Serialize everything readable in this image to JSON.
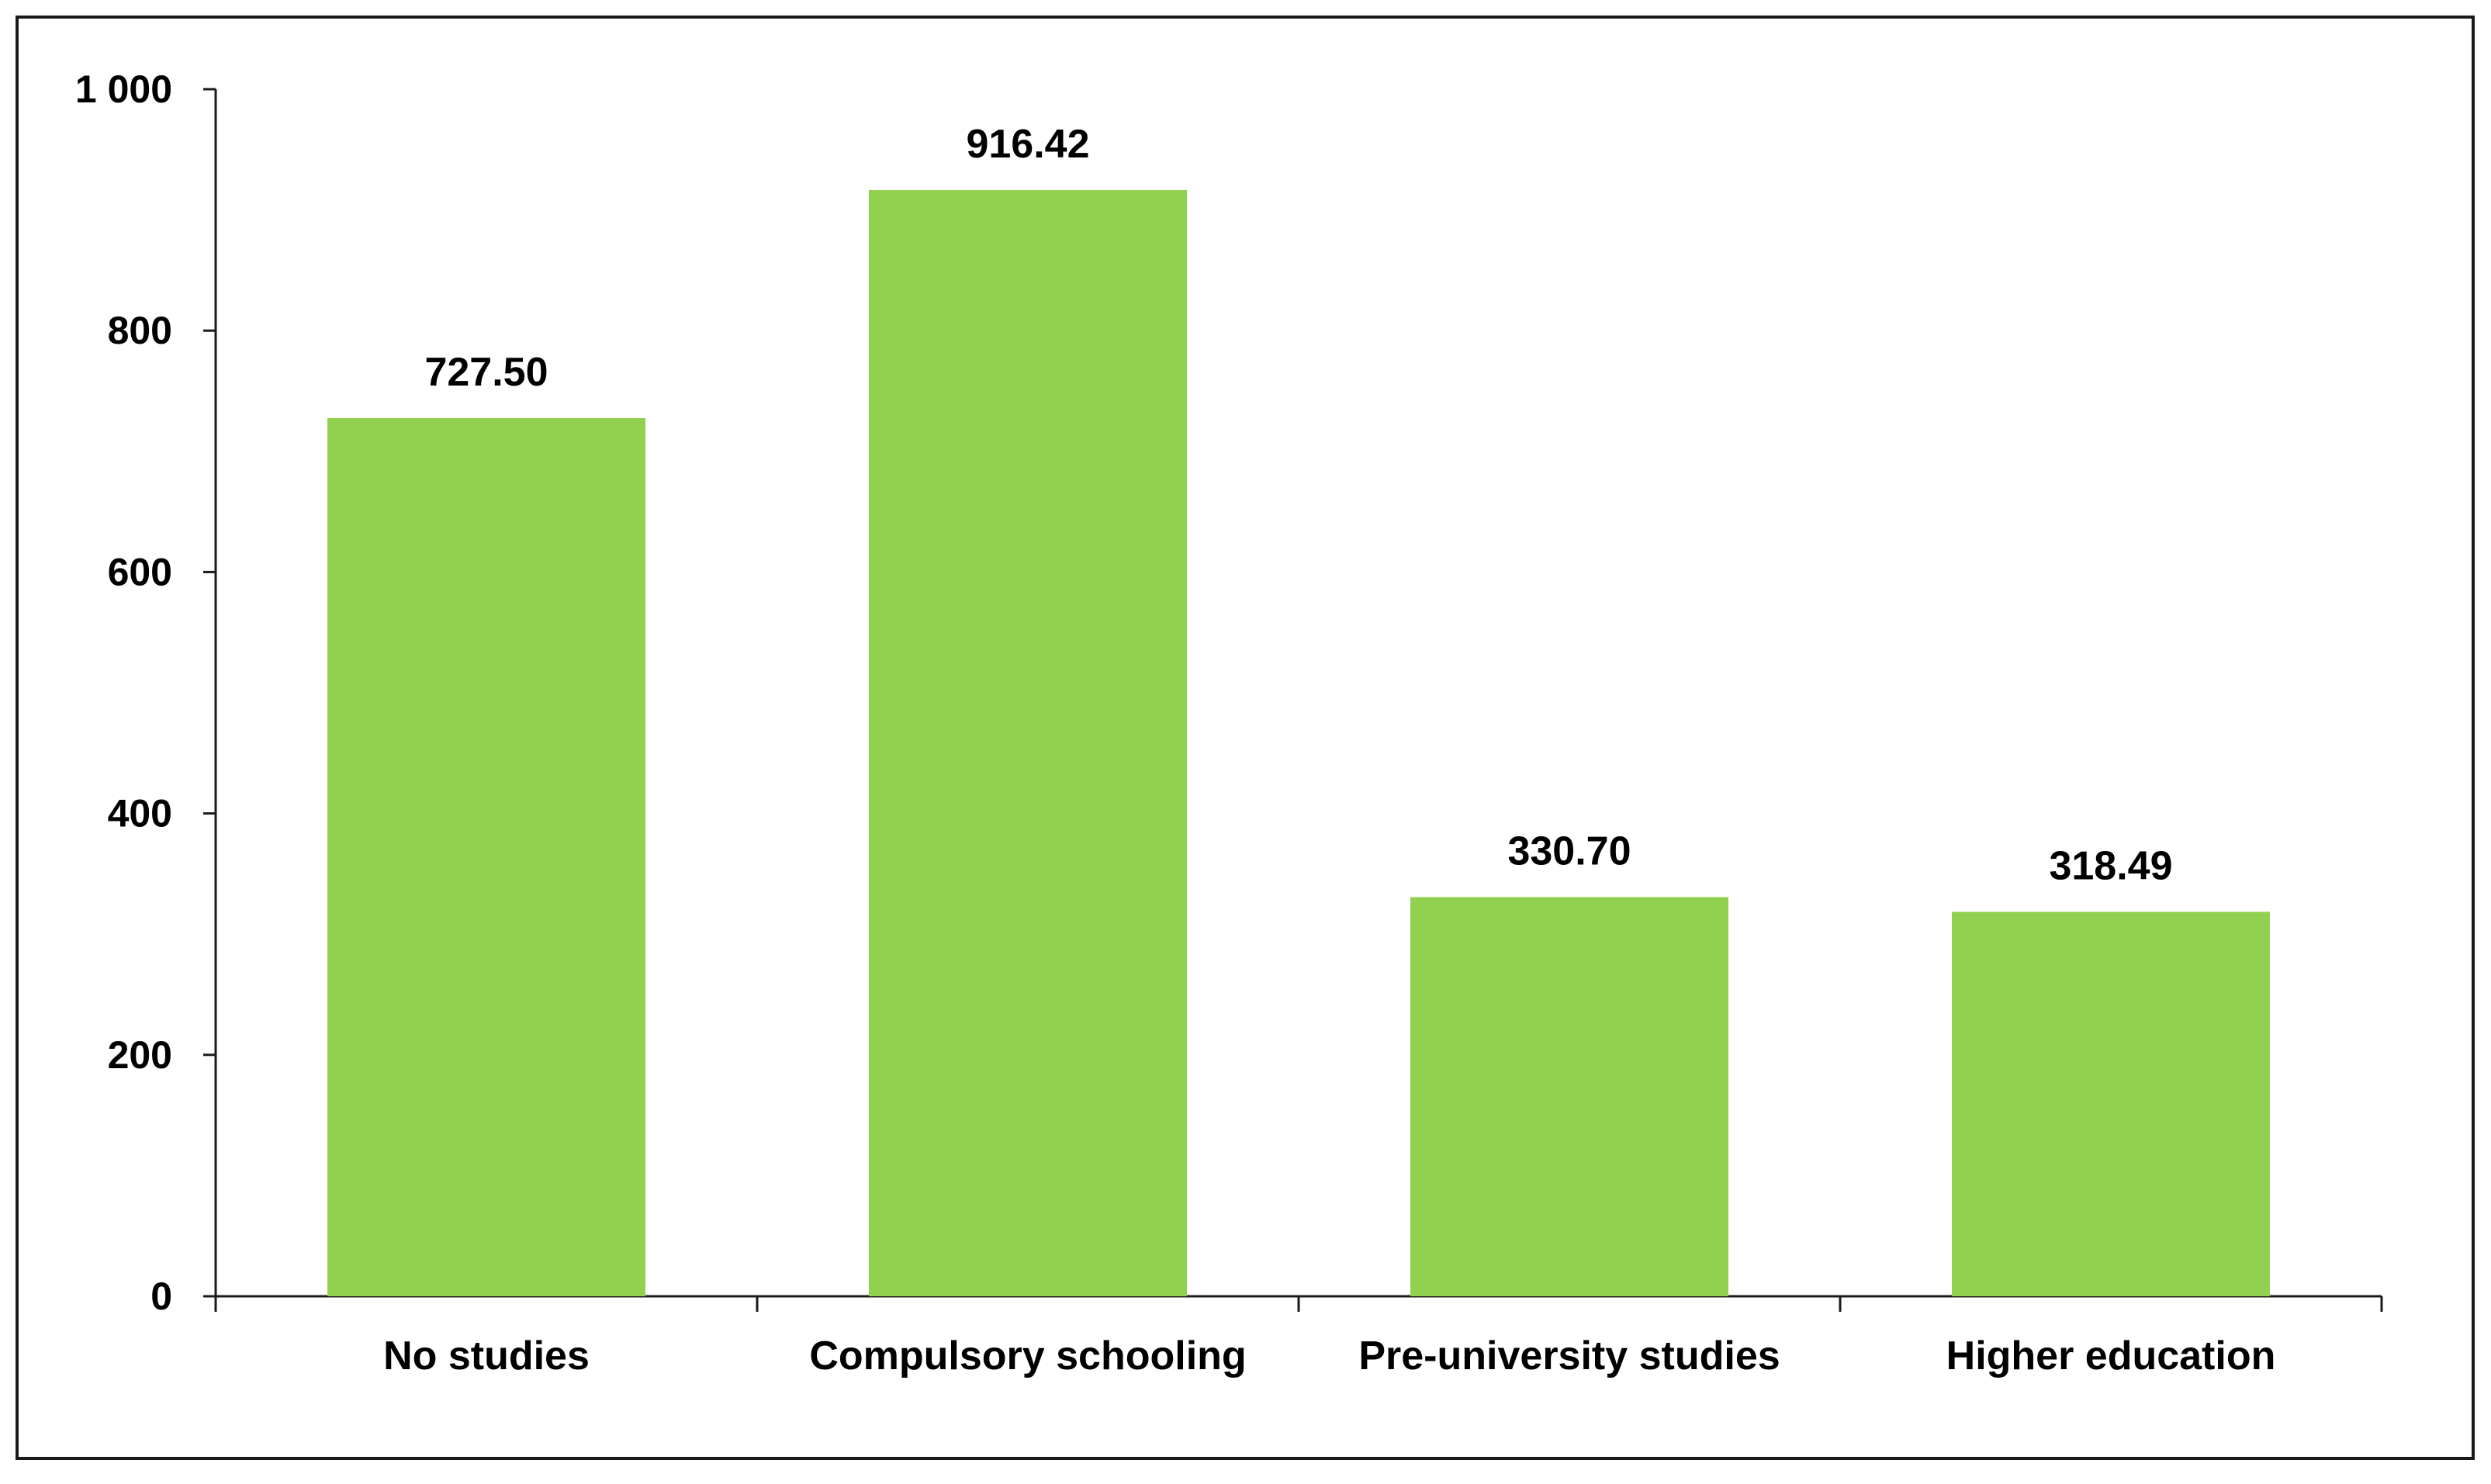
{
  "chart_data": {
    "type": "bar",
    "title": "",
    "xlabel": "",
    "ylabel": "",
    "categories": [
      "No studies",
      "Compulsory schooling",
      "Pre-university studies",
      "Higher education"
    ],
    "values": [
      727.5,
      916.42,
      330.7,
      318.49
    ],
    "data_labels": [
      "727.50",
      "916.42",
      "330.70",
      "318.49"
    ],
    "ylim": [
      0,
      1000
    ],
    "yticks": [
      0,
      200,
      400,
      600,
      800,
      1000
    ],
    "ytick_labels": [
      "0",
      "200",
      "400",
      "600",
      "800",
      "1 000"
    ],
    "grid": false,
    "legend": "none",
    "bar_color": "#92D050"
  }
}
